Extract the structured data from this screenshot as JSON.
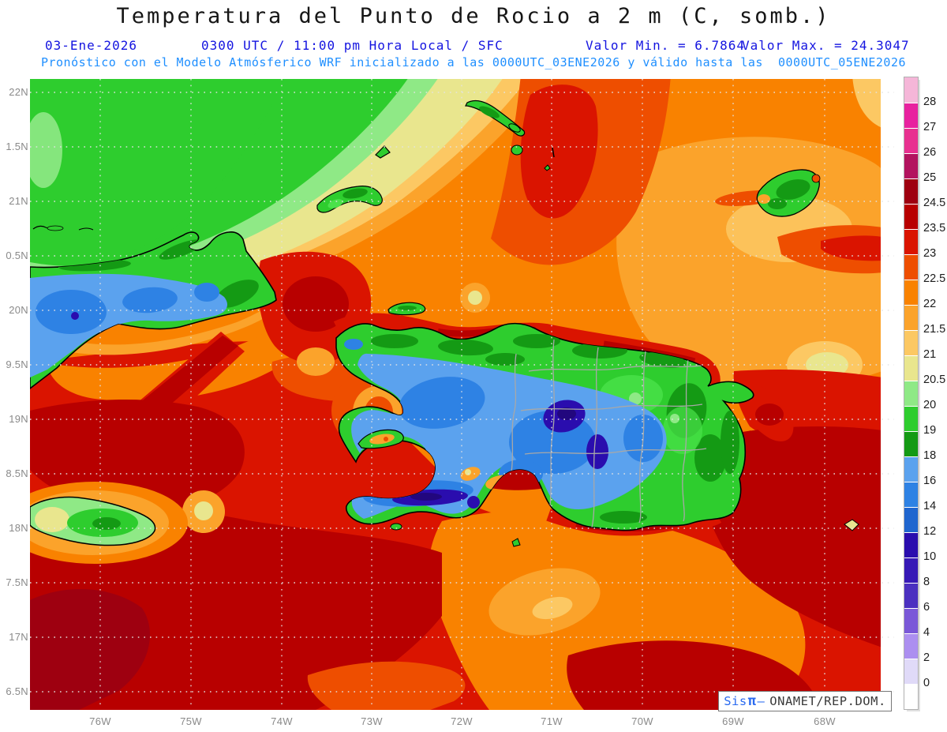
{
  "header": {
    "title": "Temperatura del Punto de Rocio a 2 m (C, somb.)",
    "date": "03-Ene-2026",
    "time_line": "0300 UTC / 11:00 pm Hora Local / SFC",
    "valor_min": "Valor Min. = 6.7864",
    "valor_max": "Valor Max. = 24.3047",
    "forecast_line": "Pronóstico con el Modelo Atmósferico WRF inicializado a las 0000UTC_03ENE2026 y válido hasta las  0000UTC_05ENE2026"
  },
  "axes": {
    "lat_labels": [
      "22N",
      "1.5N",
      "21N",
      "0.5N",
      "20N",
      "9.5N",
      "19N",
      "8.5N",
      "18N",
      "7.5N",
      "17N",
      "6.5N"
    ],
    "lon_labels": [
      "76W",
      "75W",
      "74W",
      "73W",
      "72W",
      "71W",
      "70W",
      "69W",
      "68W"
    ]
  },
  "colorbar": {
    "labels": [
      "28",
      "27",
      "26",
      "25",
      "24.5",
      "23.5",
      "23",
      "22.5",
      "22",
      "21.5",
      "21",
      "20.5",
      "20",
      "19",
      "18",
      "16",
      "14",
      "12",
      "10",
      "8",
      "6",
      "4",
      "2",
      "0"
    ],
    "colors": [
      "#f5b6d8",
      "#e8219f",
      "#e83090",
      "#b3135f",
      "#9e0010",
      "#b80000",
      "#da1400",
      "#ee4e00",
      "#f98200",
      "#fba32b",
      "#fcc863",
      "#e9e68e",
      "#8fe986",
      "#2ecd2e",
      "#149a14",
      "#5ba2ee",
      "#2e82e4",
      "#2066cf",
      "#2a0dae",
      "#3719b6",
      "#4b30c0",
      "#7a58d8",
      "#ac8ff0",
      "#e0daf8",
      "#ffffff"
    ]
  },
  "watermark": {
    "sis": "Sis",
    "pi": "π",
    "dash": "–",
    "org": "ONAMET/REP.DOM."
  }
}
